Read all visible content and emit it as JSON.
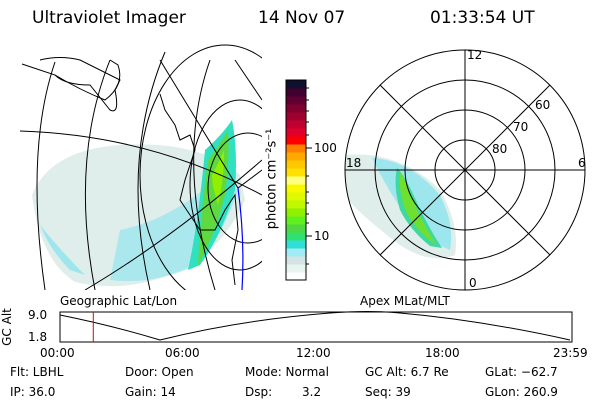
{
  "header": {
    "instrument": "Ultraviolet Imager",
    "date": "14 Nov 07",
    "time": "01:33:54 UT"
  },
  "colorbar": {
    "label": "photon cm⁻²s⁻¹",
    "ticks": [
      "100",
      "10"
    ],
    "colors": [
      "#ffffff",
      "#e8f4ee",
      "#d4e4e4",
      "#a0ecf4",
      "#30e0d8",
      "#30e070",
      "#50d840",
      "#60f020",
      "#90f000",
      "#c0f800",
      "#e0f800",
      "#f8f800",
      "#ffff80",
      "#ffe000",
      "#ffc800",
      "#ffa800",
      "#ff8000",
      "#ff0000",
      "#e0002c",
      "#c00030",
      "#a00030",
      "#800030",
      "#600030",
      "#400030",
      "#101030"
    ]
  },
  "left_map": {
    "label": "Geographic Lat/Lon"
  },
  "polar_plot": {
    "label": "Apex MLat/MLT",
    "mlt_labels": [
      "12",
      "18",
      "6",
      "0"
    ],
    "lat_labels": [
      "60",
      "70",
      "80"
    ]
  },
  "timeline": {
    "ylabel": "GC Alt",
    "yticks": [
      "9.0",
      "1.8"
    ],
    "xticks": [
      "00:00",
      "06:00",
      "12:00",
      "18:00",
      "23:59"
    ],
    "current_fraction": 0.065
  },
  "info": {
    "filter": "Flt: LBHL",
    "door": "Door: Open",
    "mode": "Mode: Normal",
    "gc_alt": "GC Alt: 6.7 Re",
    "glat": "GLat: −62.7",
    "ip": "IP: 36.0",
    "gain": "Gain: 14",
    "dsp_label": "Dsp:",
    "dsp_value": "3.2",
    "seq": "Seq: 39",
    "glon": "GLon: 260.9"
  }
}
